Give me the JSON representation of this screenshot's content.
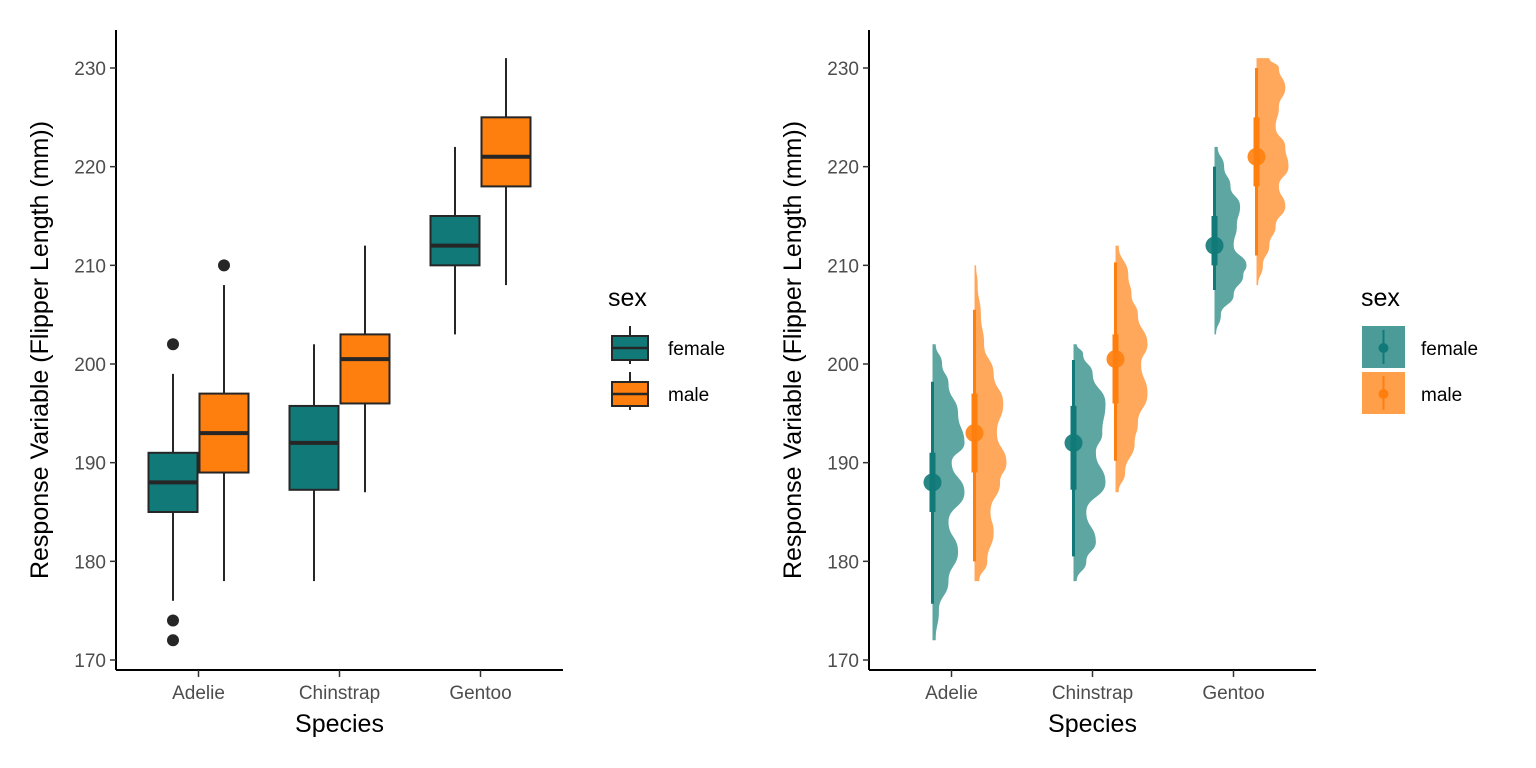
{
  "colors": {
    "female": "#117a78",
    "male": "#ff7f0e",
    "female_rain": "#4b9c98",
    "male_rain": "#ff9f4a",
    "outline": "#262626"
  },
  "chart_data": [
    {
      "type": "boxplot",
      "xlabel": "Species",
      "ylabel": "Response Variable (Flipper Length (mm))",
      "categories": [
        "Adelie",
        "Chinstrap",
        "Gentoo"
      ],
      "ylim": [
        170,
        233
      ],
      "yticks": [
        170,
        180,
        190,
        200,
        210,
        220,
        230
      ],
      "grid": false,
      "legend": {
        "title": "sex",
        "position": "right",
        "entries": [
          "female",
          "male"
        ]
      },
      "series": [
        {
          "name": "female",
          "boxes": [
            {
              "min": 176,
              "q1": 185,
              "median": 188,
              "q3": 191,
              "max": 199,
              "outliers": [
                202,
                174,
                172
              ]
            },
            {
              "min": 178,
              "q1": 187.25,
              "median": 192,
              "q3": 195.75,
              "max": 202,
              "outliers": []
            },
            {
              "min": 203,
              "q1": 210,
              "median": 212,
              "q3": 215,
              "max": 222,
              "outliers": []
            }
          ]
        },
        {
          "name": "male",
          "boxes": [
            {
              "min": 178,
              "q1": 189,
              "median": 193,
              "q3": 197,
              "max": 208,
              "outliers": [
                210
              ]
            },
            {
              "min": 187,
              "q1": 196,
              "median": 200.5,
              "q3": 203,
              "max": 212,
              "outliers": []
            },
            {
              "min": 208,
              "q1": 218,
              "median": 221,
              "q3": 225,
              "max": 231,
              "outliers": []
            }
          ]
        }
      ]
    },
    {
      "type": "raincloud",
      "xlabel": "Species",
      "ylabel": "Response Variable (Flipper Length (mm))",
      "categories": [
        "Adelie",
        "Chinstrap",
        "Gentoo"
      ],
      "ylim": [
        170,
        233
      ],
      "yticks": [
        170,
        180,
        190,
        200,
        210,
        220,
        230
      ],
      "grid": false,
      "legend": {
        "title": "sex",
        "position": "right",
        "entries": [
          "female",
          "male"
        ]
      },
      "series": [
        {
          "name": "female",
          "groups": [
            {
              "median": 188,
              "q1": 185,
              "q3": 191,
              "lo": 175.7,
              "hi": 198.2,
              "density": [
                [
                  172,
                  0.1
                ],
                [
                  175,
                  0.2
                ],
                [
                  178,
                  0.5
                ],
                [
                  181,
                  0.8
                ],
                [
                  184,
                  0.5
                ],
                [
                  187,
                  1.0
                ],
                [
                  190,
                  0.6
                ],
                [
                  192,
                  1.0
                ],
                [
                  195,
                  0.8
                ],
                [
                  198,
                  0.5
                ],
                [
                  200,
                  0.3
                ],
                [
                  202,
                  0.1
                ]
              ]
            },
            {
              "median": 192,
              "q1": 187.25,
              "q3": 195.75,
              "lo": 180.5,
              "hi": 200.4,
              "density": [
                [
                  178,
                  0.1
                ],
                [
                  180,
                  0.4
                ],
                [
                  182,
                  0.7
                ],
                [
                  185,
                  0.4
                ],
                [
                  188,
                  1.0
                ],
                [
                  191,
                  0.7
                ],
                [
                  193,
                  0.9
                ],
                [
                  196,
                  1.0
                ],
                [
                  199,
                  0.6
                ],
                [
                  201,
                  0.3
                ],
                [
                  202,
                  0.1
                ]
              ]
            },
            {
              "median": 212,
              "q1": 210,
              "q3": 215,
              "lo": 207.5,
              "hi": 220,
              "density": [
                [
                  203,
                  0.05
                ],
                [
                  205,
                  0.2
                ],
                [
                  207,
                  0.6
                ],
                [
                  209,
                  0.9
                ],
                [
                  210,
                  1.0
                ],
                [
                  212,
                  0.6
                ],
                [
                  214,
                  0.7
                ],
                [
                  216,
                  0.8
                ],
                [
                  218,
                  0.5
                ],
                [
                  220,
                  0.3
                ],
                [
                  222,
                  0.1
                ]
              ]
            }
          ]
        },
        {
          "name": "male",
          "groups": [
            {
              "median": 193,
              "q1": 189,
              "q3": 197,
              "lo": 180,
              "hi": 205.5,
              "density": [
                [
                  178,
                  0.15
                ],
                [
                  180,
                  0.4
                ],
                [
                  183,
                  0.6
                ],
                [
                  185,
                  0.5
                ],
                [
                  188,
                  0.8
                ],
                [
                  190,
                  1.0
                ],
                [
                  193,
                  0.7
                ],
                [
                  196,
                  0.9
                ],
                [
                  199,
                  0.6
                ],
                [
                  202,
                  0.3
                ],
                [
                  205,
                  0.2
                ],
                [
                  208,
                  0.1
                ],
                [
                  210,
                  0.05
                ]
              ]
            },
            {
              "median": 200.5,
              "q1": 196,
              "q3": 203,
              "lo": 190.2,
              "hi": 210.3,
              "density": [
                [
                  187,
                  0.1
                ],
                [
                  189,
                  0.3
                ],
                [
                  192,
                  0.6
                ],
                [
                  194,
                  0.7
                ],
                [
                  197,
                  1.0
                ],
                [
                  200,
                  0.8
                ],
                [
                  202,
                  1.0
                ],
                [
                  205,
                  0.7
                ],
                [
                  207,
                  0.5
                ],
                [
                  209,
                  0.4
                ],
                [
                  212,
                  0.1
                ]
              ]
            },
            {
              "median": 221,
              "q1": 218,
              "q3": 225,
              "lo": 211,
              "hi": 230,
              "density": [
                [
                  208,
                  0.05
                ],
                [
                  210,
                  0.2
                ],
                [
                  212,
                  0.4
                ],
                [
                  214,
                  0.6
                ],
                [
                  216,
                  0.9
                ],
                [
                  218,
                  0.7
                ],
                [
                  220,
                  1.0
                ],
                [
                  222,
                  0.9
                ],
                [
                  224,
                  0.6
                ],
                [
                  226,
                  0.7
                ],
                [
                  228,
                  0.9
                ],
                [
                  230,
                  0.7
                ],
                [
                  231,
                  0.4
                ]
              ]
            }
          ]
        }
      ]
    }
  ]
}
